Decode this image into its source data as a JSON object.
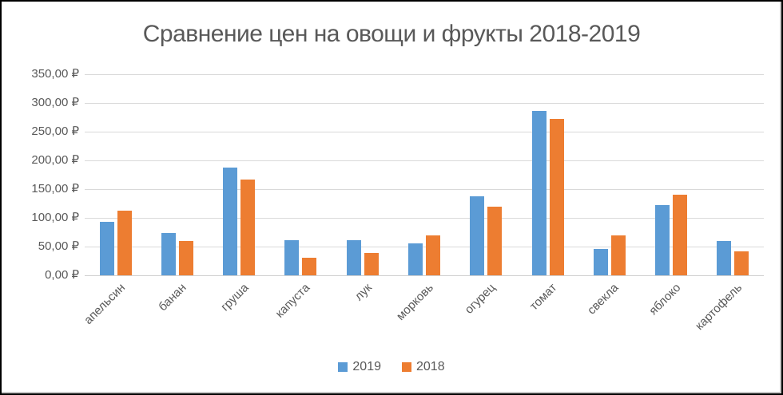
{
  "window": {
    "background": "#ffffff",
    "border_color": "#000000"
  },
  "chart_data": {
    "type": "bar",
    "title": "Сравнение цен на овощи и фрукты 2018-2019",
    "categories": [
      "апельсин",
      "банан",
      "груша",
      "капуста",
      "лук",
      "морковь",
      "огурец",
      "томат",
      "свекла",
      "яблоко",
      "картофель"
    ],
    "series": [
      {
        "name": "2019",
        "color": "#5B9BD5",
        "values": [
          93,
          74,
          187,
          61,
          61,
          55,
          138,
          286,
          46,
          122,
          60
        ]
      },
      {
        "name": "2018",
        "color": "#ED7D31",
        "values": [
          113,
          60,
          166,
          31,
          39,
          69,
          119,
          272,
          70,
          140,
          42
        ]
      }
    ],
    "xlabel": "",
    "ylabel": "",
    "ylim": [
      0,
      350
    ],
    "ytick_step": 50,
    "ytick_labels": [
      "0,00 ₽",
      "50,00 ₽",
      "100,00 ₽",
      "150,00 ₽",
      "200,00 ₽",
      "250,00 ₽",
      "300,00 ₽",
      "350,00 ₽"
    ],
    "grid": true,
    "legend_position": "bottom",
    "colors": {
      "text": "#595959",
      "gridline": "#D9D9D9"
    }
  }
}
